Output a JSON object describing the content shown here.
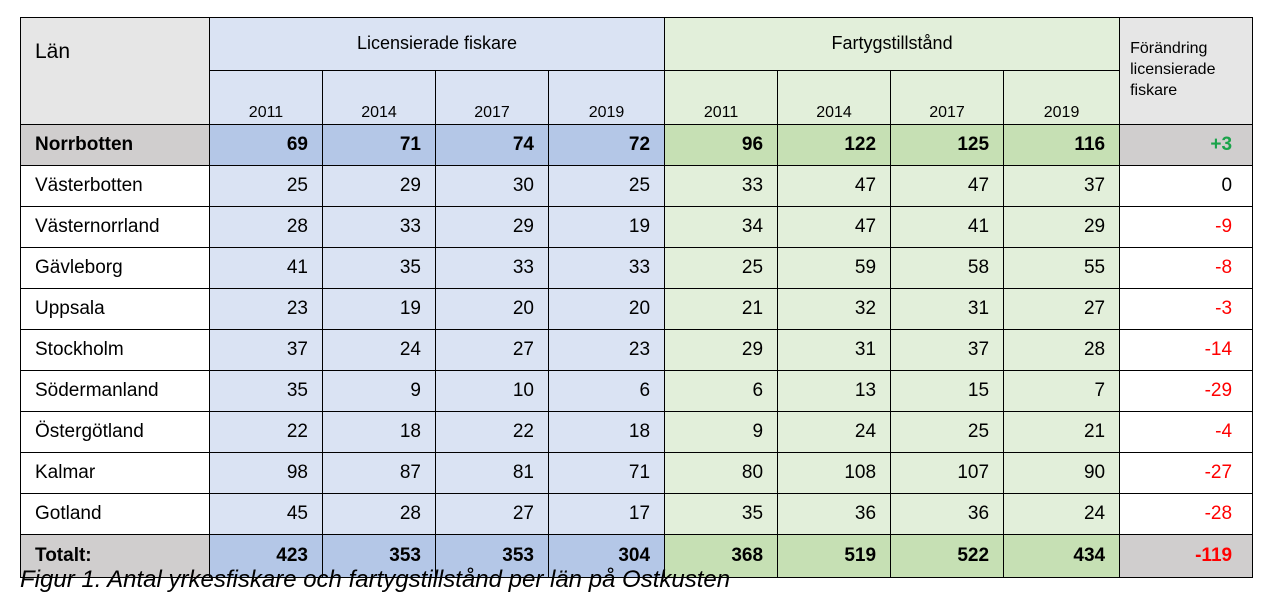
{
  "table": {
    "lan_header": "Län",
    "groups": {
      "licenses": "Licensierade fiskare",
      "vessels": "Fartygstillstånd",
      "change_lines": [
        "Förändring",
        "licensierade",
        "fiskare"
      ]
    },
    "years": [
      "2011",
      "2014",
      "2017",
      "2019"
    ],
    "rows": [
      {
        "county": "Norrbotten",
        "lic": [
          "69",
          "71",
          "74",
          "72"
        ],
        "ves": [
          "96",
          "122",
          "125",
          "116"
        ],
        "change": "+3",
        "bold": true
      },
      {
        "county": "Västerbotten",
        "lic": [
          "25",
          "29",
          "30",
          "25"
        ],
        "ves": [
          "33",
          "47",
          "47",
          "37"
        ],
        "change": "0"
      },
      {
        "county": "Västernorrland",
        "lic": [
          "28",
          "33",
          "29",
          "19"
        ],
        "ves": [
          "34",
          "47",
          "41",
          "29"
        ],
        "change": "-9"
      },
      {
        "county": "Gävleborg",
        "lic": [
          "41",
          "35",
          "33",
          "33"
        ],
        "ves": [
          "25",
          "59",
          "58",
          "55"
        ],
        "change": "-8"
      },
      {
        "county": "Uppsala",
        "lic": [
          "23",
          "19",
          "20",
          "20"
        ],
        "ves": [
          "21",
          "32",
          "31",
          "27"
        ],
        "change": "-3"
      },
      {
        "county": "Stockholm",
        "lic": [
          "37",
          "24",
          "27",
          "23"
        ],
        "ves": [
          "29",
          "31",
          "37",
          "28"
        ],
        "change": "-14"
      },
      {
        "county": "Södermanland",
        "lic": [
          "35",
          "9",
          "10",
          "6"
        ],
        "ves": [
          "6",
          "13",
          "15",
          "7"
        ],
        "change": "-29"
      },
      {
        "county": "Östergötland",
        "lic": [
          "22",
          "18",
          "22",
          "18"
        ],
        "ves": [
          "9",
          "24",
          "25",
          "21"
        ],
        "change": "-4"
      },
      {
        "county": "Kalmar",
        "lic": [
          "98",
          "87",
          "81",
          "71"
        ],
        "ves": [
          "80",
          "108",
          "107",
          "90"
        ],
        "change": "-27"
      },
      {
        "county": "Gotland",
        "lic": [
          "45",
          "28",
          "27",
          "17"
        ],
        "ves": [
          "35",
          "36",
          "36",
          "24"
        ],
        "change": "-28"
      }
    ],
    "total": {
      "county": "Totalt:",
      "lic": [
        "423",
        "353",
        "353",
        "304"
      ],
      "ves": [
        "368",
        "519",
        "522",
        "434"
      ],
      "change": "-119"
    }
  },
  "colors": {
    "positive_change": "#1aa34a",
    "negative_change": "#ff0000",
    "licenses_light": "#dae3f3",
    "licenses_dark": "#b4c7e7",
    "vessels_light": "#e2efda",
    "vessels_dark": "#c6e0b4",
    "neutral_dark": "#d0cece"
  },
  "caption": "Figur 1. Antal yrkesfiskare och fartygstillstånd per län på Ostkusten"
}
